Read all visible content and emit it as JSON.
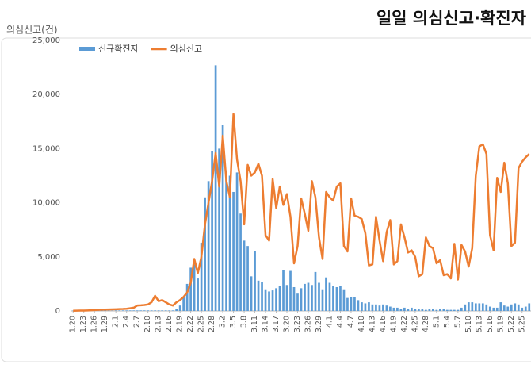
{
  "chart_data": {
    "type": "bar_line",
    "title": "일일 의심신고·확진자",
    "y_axis_label": "의심신고(건)",
    "ylim": [
      0,
      25000
    ],
    "yticks": [
      0,
      {
        "value": 5000,
        "label": "5,000"
      },
      {
        "value": 10000,
        "label": "10,000"
      },
      {
        "value": 15000,
        "label": "15,000"
      },
      {
        "value": 20000,
        "label": "20,000"
      },
      {
        "value": 25000,
        "label": "25,000"
      }
    ],
    "grid": false,
    "legend": "top-left",
    "categories": [
      "1.20",
      null,
      null,
      "1.23",
      null,
      null,
      "1.26",
      null,
      null,
      "1.29",
      null,
      null,
      "2.1",
      null,
      null,
      "2.4",
      null,
      null,
      "2.7",
      null,
      null,
      "2.10",
      null,
      null,
      "2.13",
      null,
      null,
      "2.16",
      null,
      null,
      "2.19",
      null,
      null,
      "2.22",
      null,
      null,
      "2.25",
      null,
      null,
      "2.28",
      null,
      null,
      "3.2",
      null,
      null,
      "3.5",
      null,
      null,
      "3.8",
      null,
      null,
      "3.11",
      null,
      null,
      "3.14",
      null,
      null,
      "3.17",
      null,
      null,
      "3.20",
      null,
      null,
      "3.23",
      null,
      null,
      "3.26",
      null,
      null,
      "3.29",
      null,
      null,
      "4.1",
      null,
      null,
      "4.4",
      null,
      null,
      "4.7",
      null,
      null,
      "4.10",
      null,
      null,
      "4.13",
      null,
      null,
      "4.16",
      null,
      null,
      "4.19",
      null,
      null,
      "4.22",
      null,
      null,
      "4.25",
      null,
      null,
      "4.28",
      null,
      null,
      "5.1",
      null,
      null,
      "5.4",
      null,
      null,
      "5.7",
      null,
      null,
      "5.10",
      null,
      null,
      "5.13",
      null,
      null,
      "5.16",
      null,
      null,
      "5.19",
      null,
      null,
      "5.22",
      null,
      null,
      "5.25",
      null,
      null
    ],
    "series": [
      {
        "name": "신규확진자",
        "type": "bar",
        "color": "#5b9bd5",
        "values": [
          30,
          30,
          30,
          30,
          30,
          30,
          30,
          30,
          30,
          30,
          30,
          30,
          50,
          50,
          50,
          50,
          50,
          50,
          50,
          50,
          50,
          50,
          50,
          50,
          50,
          50,
          50,
          50,
          50,
          200,
          500,
          1300,
          2500,
          4000,
          4300,
          3000,
          6300,
          10500,
          12000,
          14800,
          22700,
          15000,
          17200,
          13000,
          12500,
          11000,
          12800,
          9000,
          6500,
          6000,
          3200,
          5500,
          2800,
          2700,
          2000,
          1800,
          1900,
          2100,
          2300,
          3800,
          2400,
          3700,
          2200,
          1600,
          2100,
          2500,
          2600,
          2400,
          3600,
          2600,
          2000,
          3100,
          2600,
          2300,
          2200,
          2300,
          2000,
          1200,
          1300,
          1300,
          1000,
          800,
          700,
          800,
          600,
          600,
          500,
          600,
          500,
          400,
          300,
          300,
          200,
          300,
          200,
          300,
          200,
          200,
          200,
          100,
          200,
          200,
          100,
          200,
          200,
          100,
          100,
          100,
          100,
          300,
          600,
          800,
          800,
          700,
          700,
          700,
          600,
          400,
          300,
          300,
          800,
          500,
          400,
          600,
          700,
          600,
          300,
          400,
          700
        ]
      },
      {
        "name": "의심신고",
        "type": "line",
        "color": "#ed7d31",
        "values": [
          20,
          30,
          40,
          40,
          50,
          60,
          80,
          100,
          120,
          130,
          140,
          150,
          160,
          170,
          180,
          200,
          250,
          300,
          500,
          520,
          550,
          600,
          800,
          1400,
          900,
          1000,
          800,
          600,
          500,
          800,
          1000,
          1300,
          1700,
          2600,
          4800,
          3500,
          5000,
          8000,
          10000,
          12000,
          14600,
          11500,
          16200,
          12000,
          10500,
          18200,
          14000,
          12000,
          8000,
          13500,
          12500,
          12800,
          13600,
          12500,
          7000,
          6500,
          12200,
          9500,
          11500,
          9800,
          10800,
          8700,
          4400,
          6000,
          10400,
          9000,
          7400,
          12000,
          10500,
          6800,
          4800,
          11000,
          10500,
          10200,
          11500,
          11800,
          6000,
          5500,
          10400,
          8800,
          8700,
          8500,
          7200,
          4200,
          4300,
          8700,
          6500,
          4600,
          7300,
          8400,
          4300,
          4600,
          8000,
          6800,
          5400,
          5600,
          5000,
          3200,
          3400,
          6800,
          6000,
          5800,
          4400,
          4700,
          3300,
          3400,
          3000,
          6200,
          2900,
          6100,
          5500,
          4100,
          5800,
          12500,
          15200,
          15400,
          14500,
          7000,
          5600,
          12300,
          11000,
          13700,
          11800,
          6000,
          6300,
          13200,
          13800,
          14200,
          14500
        ]
      }
    ]
  }
}
